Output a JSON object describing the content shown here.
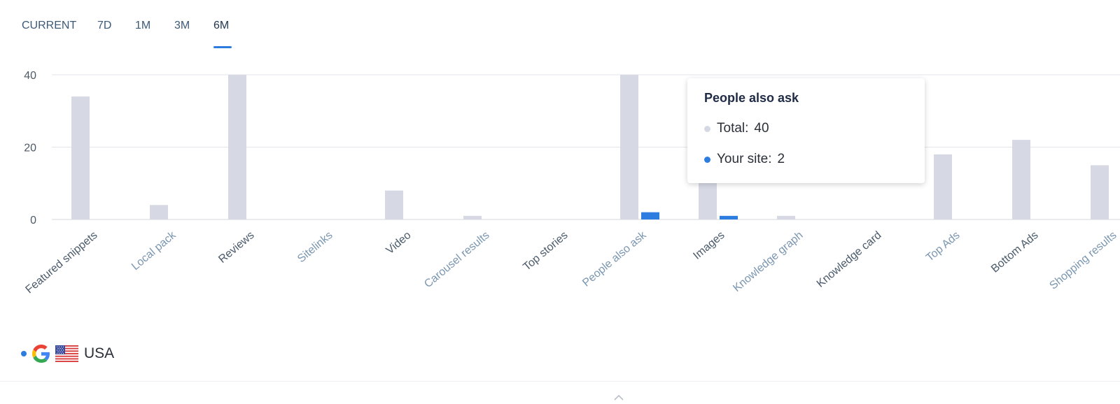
{
  "tabs": [
    {
      "label": "CURRENT",
      "active": false
    },
    {
      "label": "7D",
      "active": false
    },
    {
      "label": "1M",
      "active": false
    },
    {
      "label": "3M",
      "active": false
    },
    {
      "label": "6M",
      "active": true
    }
  ],
  "chart_data": {
    "type": "bar",
    "categories": [
      "Featured snippets",
      "Local pack",
      "Reviews",
      "Sitelinks",
      "Video",
      "Carousel results",
      "Top stories",
      "People also ask",
      "Images",
      "Knowledge graph",
      "Knowledge card",
      "Top Ads",
      "Bottom Ads",
      "Shopping results"
    ],
    "series": [
      {
        "name": "Total",
        "color": "#d6d9e3",
        "values": [
          34,
          4,
          40,
          0,
          8,
          1,
          0,
          40,
          11,
          1,
          0,
          18,
          22,
          15
        ]
      },
      {
        "name": "Your site",
        "color": "#2d7de0",
        "values": [
          0,
          0,
          0,
          0,
          0,
          0,
          0,
          2,
          1,
          0,
          0,
          0,
          0,
          0
        ]
      }
    ],
    "yticks": [
      0,
      20,
      40
    ],
    "ylim": [
      0,
      40
    ],
    "grid": true,
    "highlighted_category": "People also ask",
    "highlight_color": "#eef0fb"
  },
  "tooltip": {
    "title": "People also ask",
    "rows": [
      {
        "label": "Total:",
        "value": "40",
        "color": "#d6d9e3"
      },
      {
        "label": "Your site:",
        "value": "2",
        "color": "#2d7de0"
      }
    ]
  },
  "legend": {
    "country": "USA",
    "dot_color": "#2d7de0",
    "search_engine_icon": "google-logo-icon",
    "flag_icon": "usa-flag-icon"
  },
  "colors": {
    "accent": "#2d7de0",
    "tab_text": "#3c5a78",
    "category_label_a": "#4b5b6b",
    "category_label_b": "#7a96b0"
  }
}
